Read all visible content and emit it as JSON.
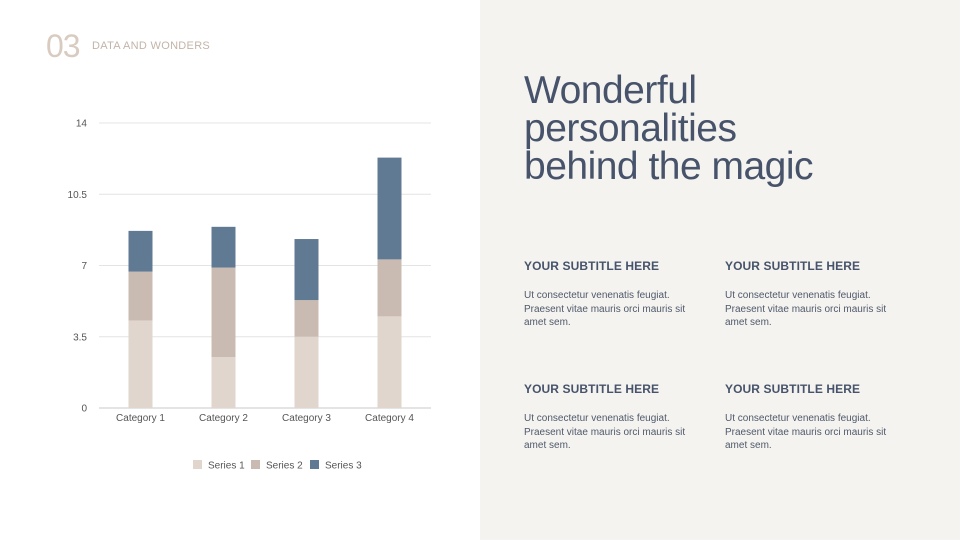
{
  "header": {
    "number": "03",
    "label": "DATA AND WONDERS"
  },
  "title": {
    "line1": "Wonderful",
    "line2": "personalities",
    "line3": "behind the magic"
  },
  "blocks": [
    {
      "subtitle": "YOUR SUBTITLE HERE",
      "body": "Ut consectetur venenatis feugiat. Praesent vitae mauris orci mauris sit amet sem."
    },
    {
      "subtitle": "YOUR SUBTITLE HERE",
      "body": "Ut consectetur venenatis feugiat. Praesent vitae mauris orci mauris sit amet sem."
    },
    {
      "subtitle": "YOUR SUBTITLE HERE",
      "body": "Ut consectetur venenatis feugiat. Praesent vitae mauris orci mauris sit amet sem."
    },
    {
      "subtitle": "YOUR SUBTITLE HERE",
      "body": "Ut consectetur venenatis feugiat. Praesent vitae mauris orci mauris sit amet sem."
    }
  ],
  "chart_data": {
    "type": "bar",
    "stacked": true,
    "categories": [
      "Category 1",
      "Category 2",
      "Category 3",
      "Category 4"
    ],
    "series": [
      {
        "name": "Series 1",
        "values": [
          4.3,
          2.5,
          3.5,
          4.5
        ],
        "color": "#e0d6ce"
      },
      {
        "name": "Series 2",
        "values": [
          2.4,
          4.4,
          1.8,
          2.8
        ],
        "color": "#c9bbb2"
      },
      {
        "name": "Series 3",
        "values": [
          2.0,
          2.0,
          3.0,
          5.0
        ],
        "color": "#607a93"
      }
    ],
    "yticks": [
      "0",
      "3.5",
      "7",
      "10.5",
      "14"
    ],
    "ylim": [
      0,
      14
    ],
    "grid": true,
    "legend": "bottom",
    "title": "",
    "xlabel": "",
    "ylabel": ""
  }
}
